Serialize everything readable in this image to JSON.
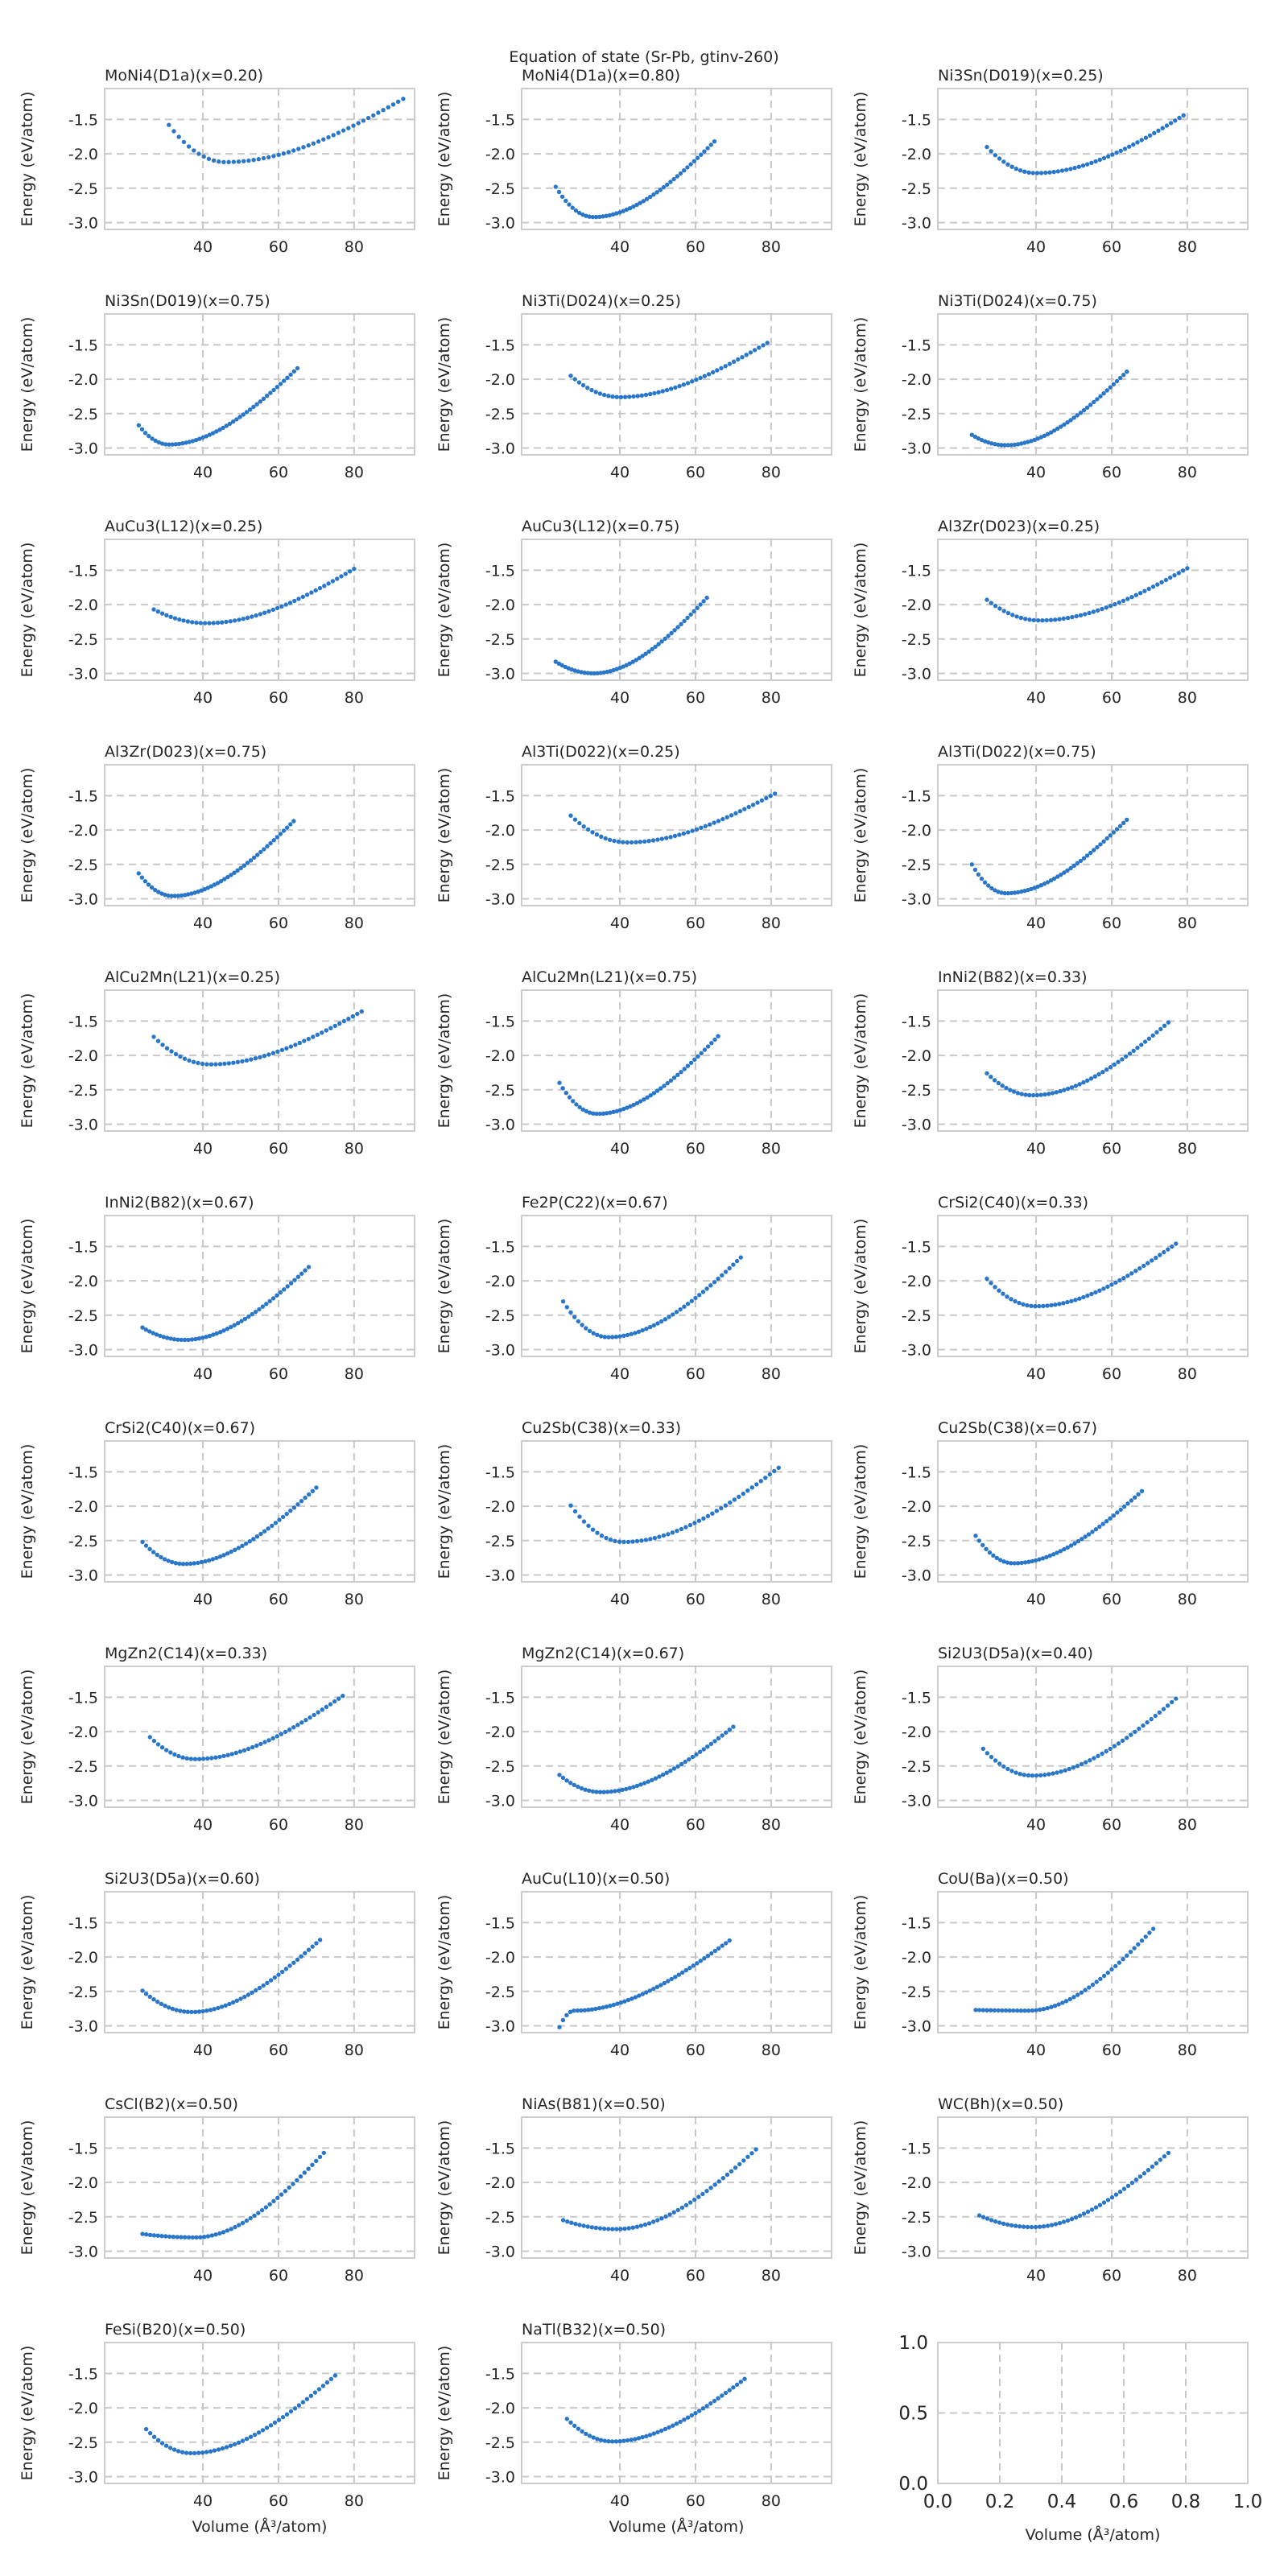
{
  "chart_data": {
    "type": "scatter",
    "title": "Equation of state (Sr-Pb, gtinv-260)",
    "xlabel": "Volume (Å³/atom)",
    "ylabel": "Energy (eV/atom)",
    "xlim": [
      14,
      96
    ],
    "ylim": [
      -3.1,
      -1.05
    ],
    "xticks": [
      "40",
      "60",
      "80"
    ],
    "yticks": [
      "-1.5",
      "-2.0",
      "-2.5",
      "-3.0"
    ],
    "grid": true,
    "series_color": "#2a77c9",
    "empty_panel": {
      "xticks": [
        "0.0",
        "0.2",
        "0.4",
        "0.6",
        "0.8",
        "1.0"
      ],
      "yticks": [
        "0.0",
        "0.5",
        "1.0"
      ]
    },
    "panels": [
      {
        "name": "MoNi4(D1a)(x=0.20)",
        "vmin": 31,
        "vmax": 93,
        "v0": 46,
        "e0": -2.12,
        "e_left": -1.58,
        "e_right": -1.2
      },
      {
        "name": "MoNi4(D1a)(x=0.80)",
        "vmin": 23,
        "vmax": 65,
        "v0": 33,
        "e0": -2.92,
        "e_left": -2.48,
        "e_right": -1.82
      },
      {
        "name": "Ni3Sn(D019)(x=0.25)",
        "vmin": 27,
        "vmax": 79,
        "v0": 40,
        "e0": -2.28,
        "e_left": -1.9,
        "e_right": -1.44
      },
      {
        "name": "Ni3Sn(D019)(x=0.75)",
        "vmin": 23,
        "vmax": 65,
        "v0": 31,
        "e0": -2.95,
        "e_left": -2.67,
        "e_right": -1.84
      },
      {
        "name": "Ni3Ti(D024)(x=0.25)",
        "vmin": 27,
        "vmax": 79,
        "v0": 40,
        "e0": -2.26,
        "e_left": -1.95,
        "e_right": -1.47
      },
      {
        "name": "Ni3Ti(D024)(x=0.75)",
        "vmin": 23,
        "vmax": 64,
        "v0": 32,
        "e0": -2.96,
        "e_left": -2.81,
        "e_right": -1.89
      },
      {
        "name": "AuCu3(L12)(x=0.25)",
        "vmin": 27,
        "vmax": 80,
        "v0": 41,
        "e0": -2.27,
        "e_left": -2.07,
        "e_right": -1.48
      },
      {
        "name": "AuCu3(L12)(x=0.75)",
        "vmin": 23,
        "vmax": 63,
        "v0": 33,
        "e0": -3.0,
        "e_left": -2.83,
        "e_right": -1.9
      },
      {
        "name": "Al3Zr(D023)(x=0.25)",
        "vmin": 27,
        "vmax": 80,
        "v0": 41,
        "e0": -2.23,
        "e_left": -1.93,
        "e_right": -1.47
      },
      {
        "name": "Al3Zr(D023)(x=0.75)",
        "vmin": 23,
        "vmax": 64,
        "v0": 32,
        "e0": -2.96,
        "e_left": -2.63,
        "e_right": -1.87
      },
      {
        "name": "Al3Ti(D022)(x=0.25)",
        "vmin": 27,
        "vmax": 81,
        "v0": 42,
        "e0": -2.18,
        "e_left": -1.79,
        "e_right": -1.47
      },
      {
        "name": "Al3Ti(D022)(x=0.75)",
        "vmin": 23,
        "vmax": 64,
        "v0": 32,
        "e0": -2.92,
        "e_left": -2.5,
        "e_right": -1.85
      },
      {
        "name": "AlCu2Mn(L21)(x=0.25)",
        "vmin": 27,
        "vmax": 82,
        "v0": 42,
        "e0": -2.13,
        "e_left": -1.73,
        "e_right": -1.36
      },
      {
        "name": "AlCu2Mn(L21)(x=0.75)",
        "vmin": 24,
        "vmax": 66,
        "v0": 34,
        "e0": -2.85,
        "e_left": -2.4,
        "e_right": -1.72
      },
      {
        "name": "InNi2(B82)(x=0.33)",
        "vmin": 27,
        "vmax": 75,
        "v0": 39,
        "e0": -2.58,
        "e_left": -2.26,
        "e_right": -1.52
      },
      {
        "name": "InNi2(B82)(x=0.67)",
        "vmin": 24,
        "vmax": 68,
        "v0": 35,
        "e0": -2.86,
        "e_left": -2.68,
        "e_right": -1.8
      },
      {
        "name": "Fe2P(C22)(x=0.67)",
        "vmin": 25,
        "vmax": 72,
        "v0": 37,
        "e0": -2.82,
        "e_left": -2.3,
        "e_right": -1.66
      },
      {
        "name": "CrSi2(C40)(x=0.33)",
        "vmin": 27,
        "vmax": 77,
        "v0": 40,
        "e0": -2.37,
        "e_left": -1.97,
        "e_right": -1.46
      },
      {
        "name": "CrSi2(C40)(x=0.67)",
        "vmin": 24,
        "vmax": 70,
        "v0": 35,
        "e0": -2.84,
        "e_left": -2.52,
        "e_right": -1.73
      },
      {
        "name": "Cu2Sb(C38)(x=0.33)",
        "vmin": 27,
        "vmax": 82,
        "v0": 41,
        "e0": -2.52,
        "e_left": -1.99,
        "e_right": -1.44
      },
      {
        "name": "Cu2Sb(C38)(x=0.67)",
        "vmin": 24,
        "vmax": 68,
        "v0": 34,
        "e0": -2.83,
        "e_left": -2.43,
        "e_right": -1.78
      },
      {
        "name": "MgZn2(C14)(x=0.33)",
        "vmin": 26,
        "vmax": 77,
        "v0": 38,
        "e0": -2.4,
        "e_left": -2.08,
        "e_right": -1.48
      },
      {
        "name": "MgZn2(C14)(x=0.67)",
        "vmin": 24,
        "vmax": 70,
        "v0": 35,
        "e0": -2.88,
        "e_left": -2.63,
        "e_right": -1.93
      },
      {
        "name": "Si2U3(D5a)(x=0.40)",
        "vmin": 26,
        "vmax": 77,
        "v0": 39,
        "e0": -2.64,
        "e_left": -2.25,
        "e_right": -1.52
      },
      {
        "name": "Si2U3(D5a)(x=0.60)",
        "vmin": 24,
        "vmax": 71,
        "v0": 37,
        "e0": -2.8,
        "e_left": -2.49,
        "e_right": -1.75
      },
      {
        "name": "AuCu(L10)(x=0.50)",
        "vmin": 24,
        "vmax": 69,
        "v0": 28,
        "e0": -2.78,
        "e_left": -3.02,
        "e_right": -1.76
      },
      {
        "name": "CoU(Ba)(x=0.50)",
        "vmin": 24,
        "vmax": 71,
        "v0": 38,
        "e0": -2.78,
        "e_left": -2.77,
        "e_right": -1.59
      },
      {
        "name": "CsCl(B2)(x=0.50)",
        "vmin": 24,
        "vmax": 72,
        "v0": 38,
        "e0": -2.8,
        "e_left": -2.75,
        "e_right": -1.57
      },
      {
        "name": "NiAs(B81)(x=0.50)",
        "vmin": 25,
        "vmax": 76,
        "v0": 39,
        "e0": -2.68,
        "e_left": -2.55,
        "e_right": -1.52
      },
      {
        "name": "WC(Bh)(x=0.50)",
        "vmin": 25,
        "vmax": 75,
        "v0": 39,
        "e0": -2.65,
        "e_left": -2.48,
        "e_right": -1.57
      },
      {
        "name": "FeSi(B20)(x=0.50)",
        "vmin": 25,
        "vmax": 75,
        "v0": 37,
        "e0": -2.66,
        "e_left": -2.31,
        "e_right": -1.53
      },
      {
        "name": "NaTl(B32)(x=0.50)",
        "vmin": 26,
        "vmax": 73,
        "v0": 38,
        "e0": -2.49,
        "e_left": -2.16,
        "e_right": -1.58
      }
    ]
  }
}
